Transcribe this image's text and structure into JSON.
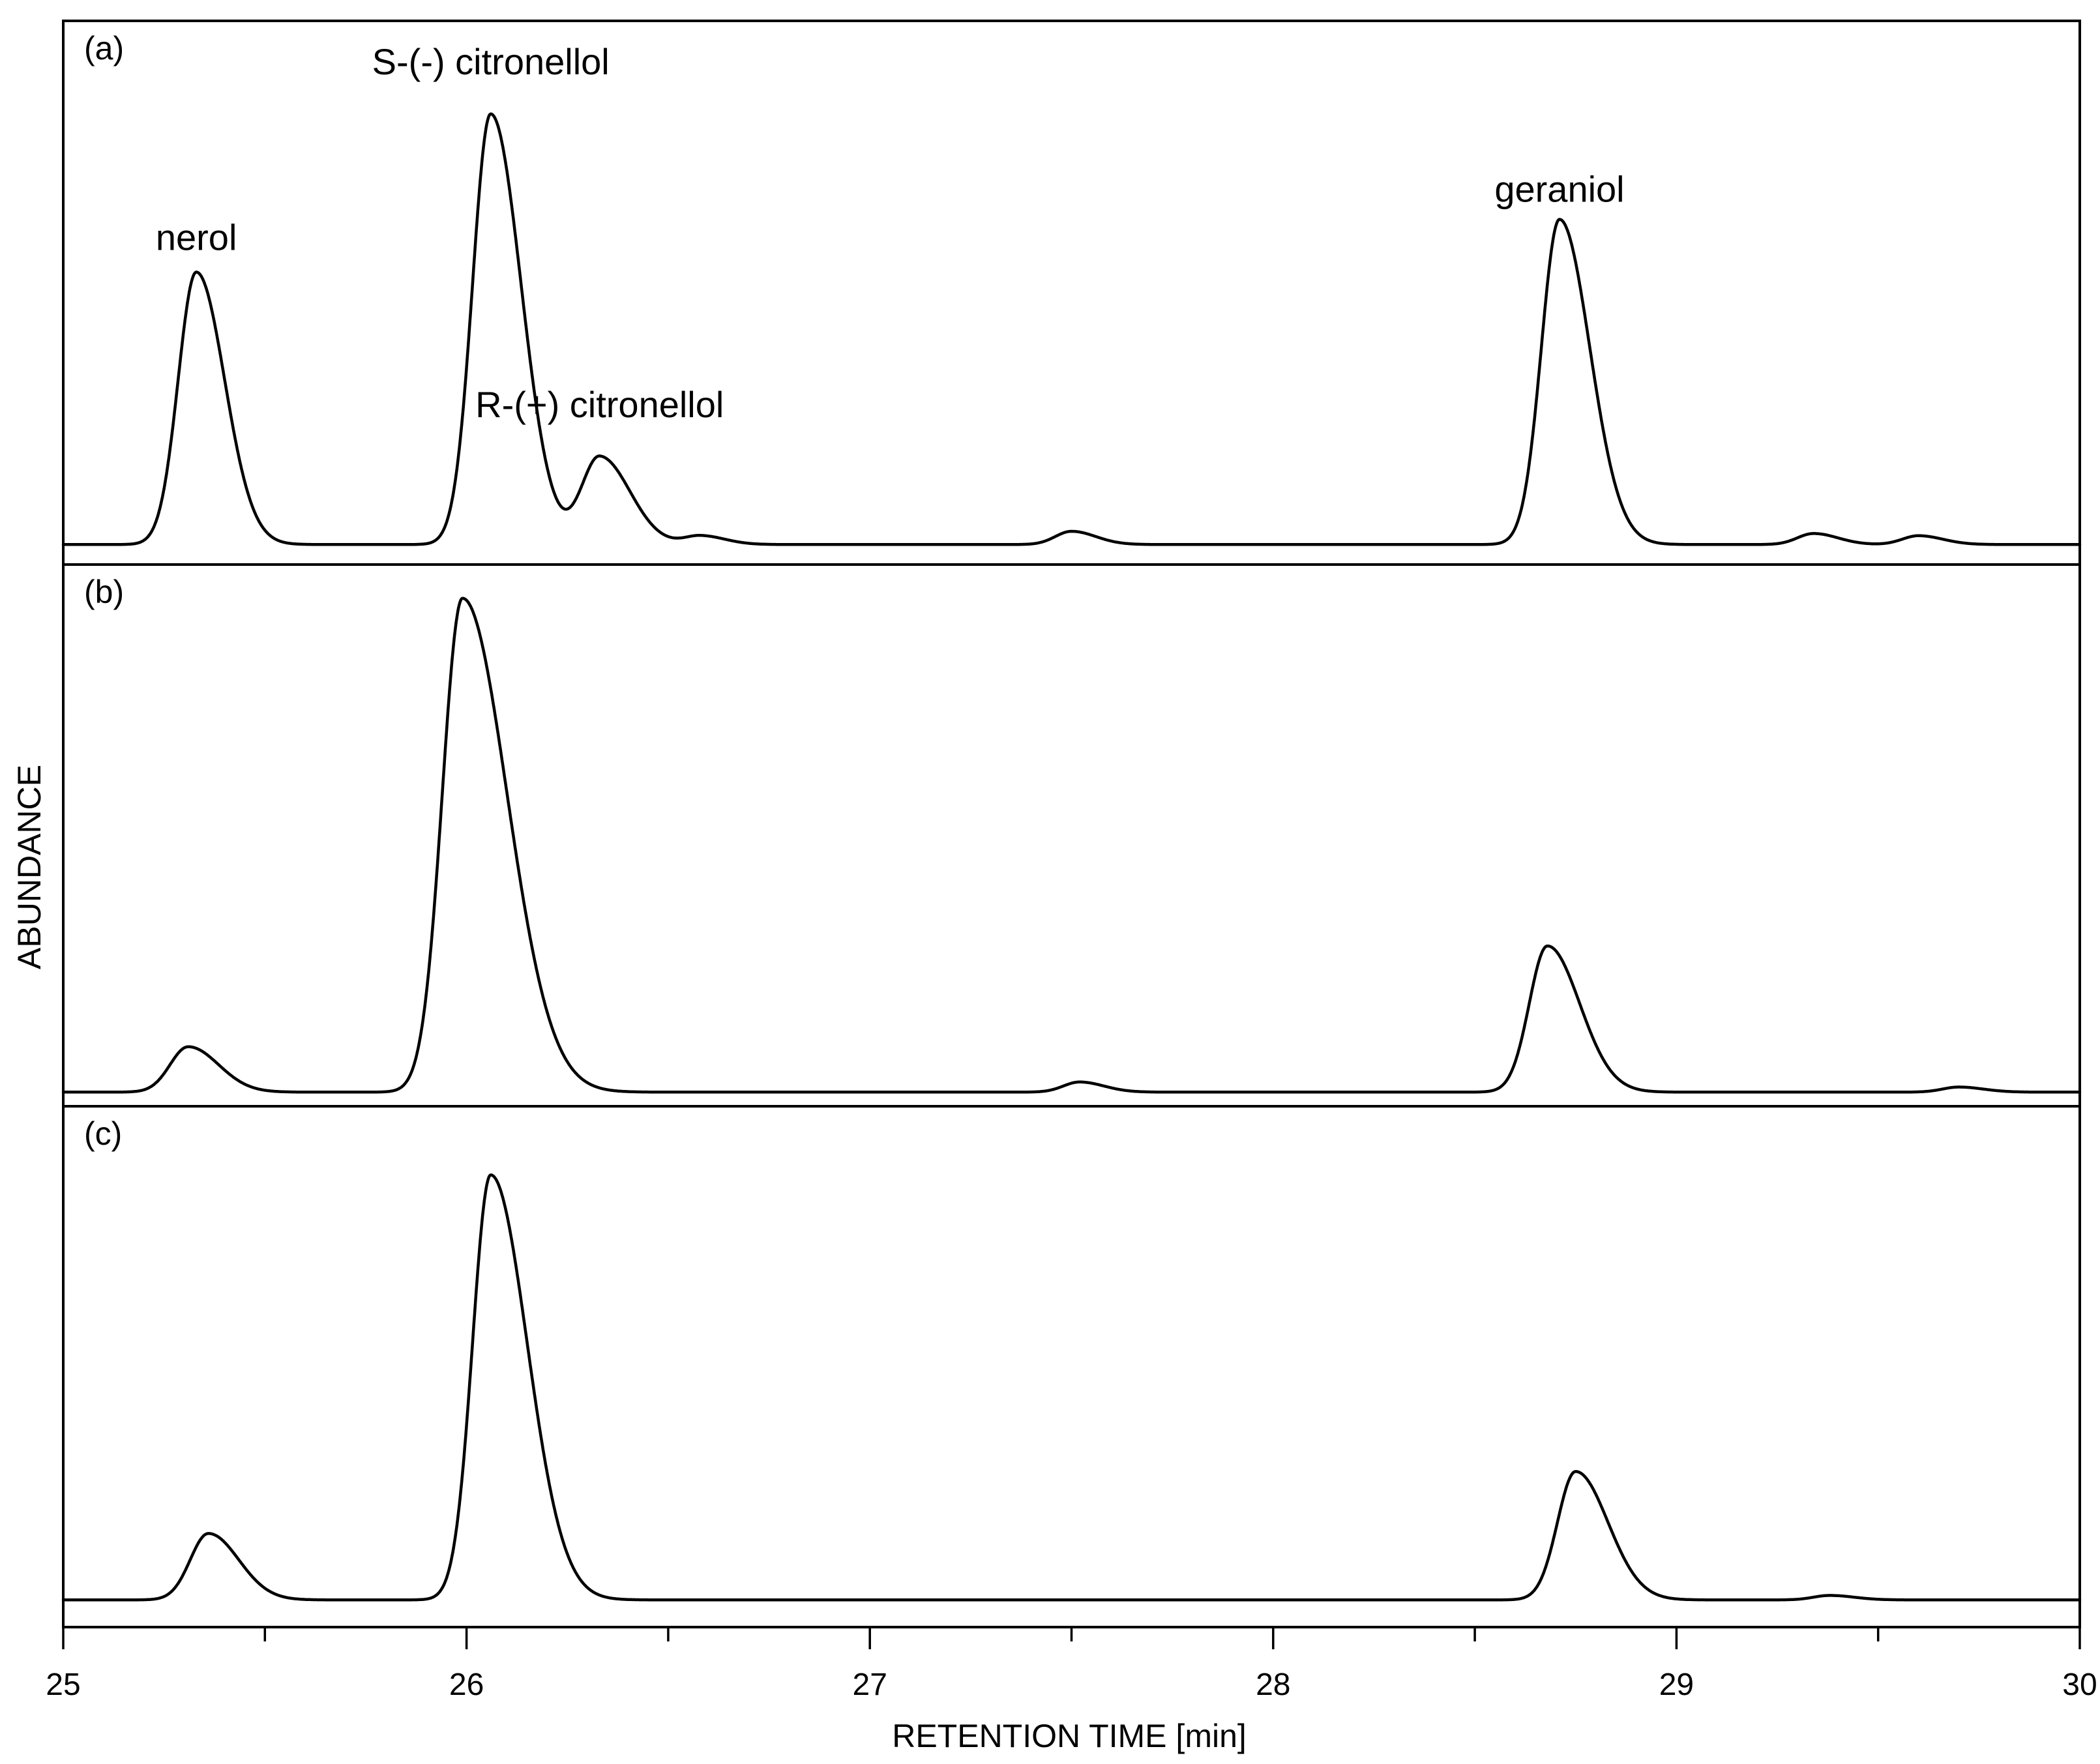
{
  "chart_data": {
    "type": "line",
    "title": "",
    "xlabel": "RETENTION TIME [min]",
    "ylabel": "ABUNDANCE",
    "xlim": [
      25,
      30
    ],
    "x_ticks": [
      25,
      26,
      27,
      28,
      29,
      30
    ],
    "x_tick_labels": [
      "25",
      "26",
      "27",
      "28",
      "29",
      "30"
    ],
    "minor_x_ticks": [
      25.5,
      26.5,
      27.5,
      28.5,
      29.5
    ],
    "ylim": [
      0,
      100
    ],
    "grid": false,
    "panels": [
      {
        "label": "(a)",
        "baseline": 1,
        "peaks": [
          {
            "name": "nerol",
            "rt": 25.33,
            "height": 62,
            "width": 0.045,
            "tail": 0.025
          },
          {
            "name": "S-(-) citronellol",
            "rt": 26.06,
            "height": 98,
            "width": 0.045,
            "tail": 0.03
          },
          {
            "name": "R-(+) citronellol",
            "rt": 26.33,
            "height": 20,
            "width": 0.045,
            "tail": 0.03
          },
          {
            "name": "",
            "rt": 26.58,
            "height": 2,
            "width": 0.04,
            "tail": 0.02
          },
          {
            "name": "",
            "rt": 27.5,
            "height": 3,
            "width": 0.04,
            "tail": 0.02
          },
          {
            "name": "geraniol",
            "rt": 28.71,
            "height": 74,
            "width": 0.045,
            "tail": 0.03
          },
          {
            "name": "",
            "rt": 29.34,
            "height": 2.5,
            "width": 0.04,
            "tail": 0.02
          },
          {
            "name": "",
            "rt": 29.6,
            "height": 2,
            "width": 0.04,
            "tail": 0.02
          }
        ],
        "annotations": [
          {
            "text": "nerol",
            "rt": 25.33,
            "level": 68
          },
          {
            "text": "S-(-) citronellol",
            "rt": 26.06,
            "level": 108
          },
          {
            "text": "R-(+) citronellol",
            "rt": 26.33,
            "level": 30
          },
          {
            "text": "geraniol",
            "rt": 28.71,
            "level": 79
          }
        ]
      },
      {
        "label": "(b)",
        "baseline": 1,
        "peaks": [
          {
            "name": "nerol",
            "rt": 25.31,
            "height": 9,
            "width": 0.045,
            "tail": 0.03
          },
          {
            "name": "S-(-) citronellol",
            "rt": 25.99,
            "height": 98,
            "width": 0.05,
            "tail": 0.06
          },
          {
            "name": "",
            "rt": 27.52,
            "height": 2,
            "width": 0.04,
            "tail": 0.02
          },
          {
            "name": "geraniol",
            "rt": 28.68,
            "height": 29,
            "width": 0.045,
            "tail": 0.035
          },
          {
            "name": "",
            "rt": 29.7,
            "height": 1,
            "width": 0.04,
            "tail": 0.02
          }
        ],
        "annotations": []
      },
      {
        "label": "(c)",
        "baseline": 1,
        "peaks": [
          {
            "name": "nerol",
            "rt": 25.36,
            "height": 15,
            "width": 0.045,
            "tail": 0.03
          },
          {
            "name": "S-(-) citronellol",
            "rt": 26.06,
            "height": 96,
            "width": 0.045,
            "tail": 0.045
          },
          {
            "name": "geraniol",
            "rt": 28.75,
            "height": 29,
            "width": 0.045,
            "tail": 0.035
          },
          {
            "name": "",
            "rt": 29.38,
            "height": 1,
            "width": 0.04,
            "tail": 0.02
          }
        ],
        "annotations": []
      }
    ]
  }
}
